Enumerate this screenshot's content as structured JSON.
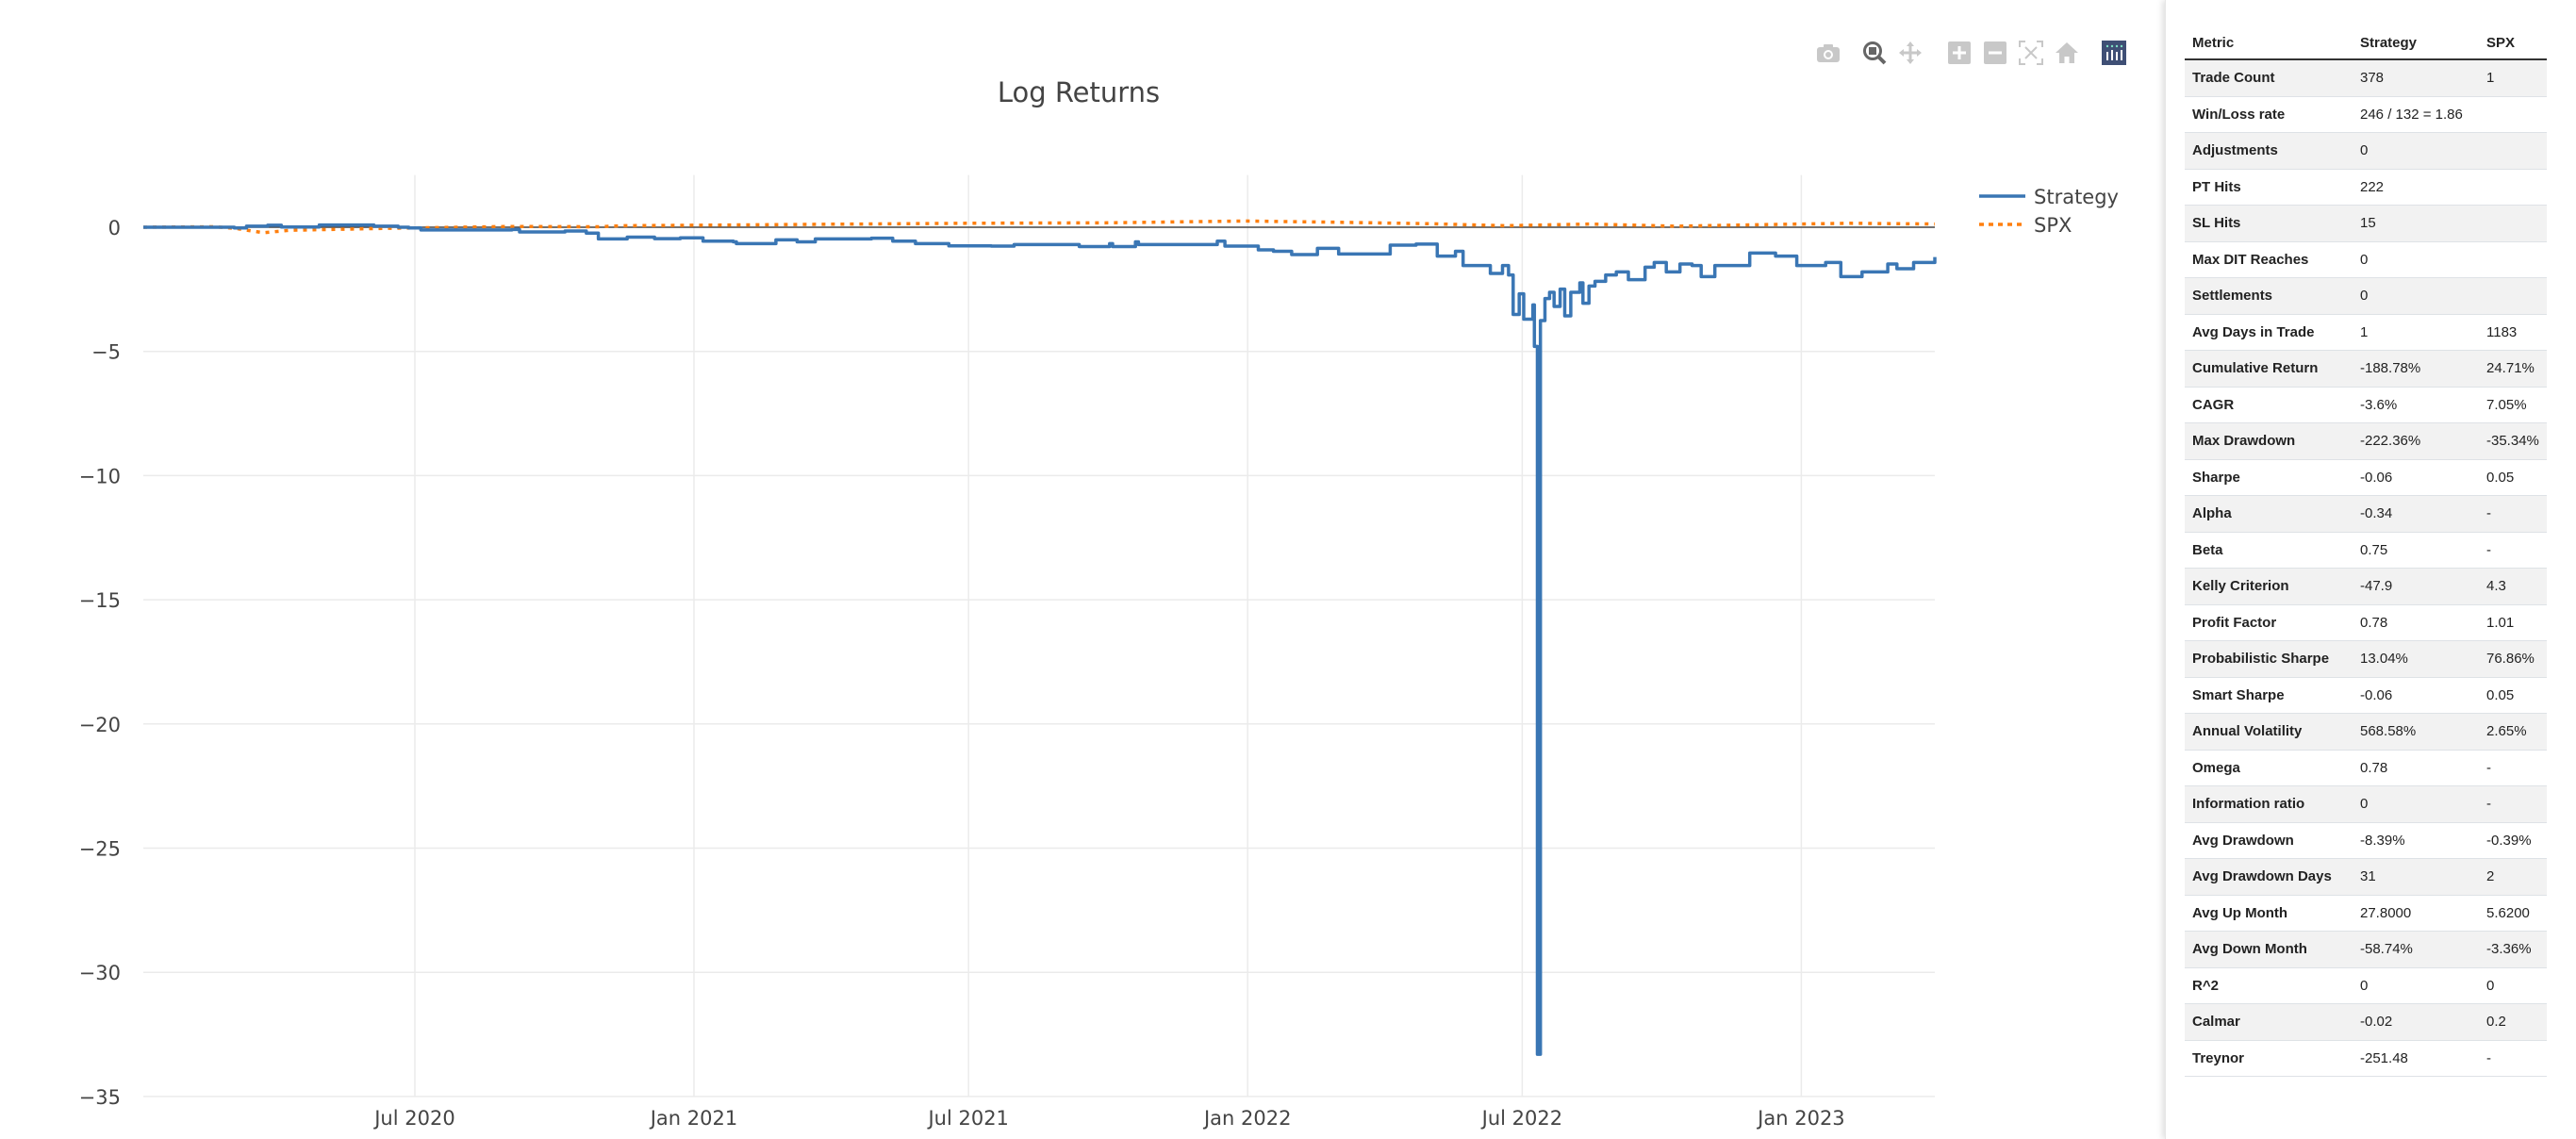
{
  "chart_data": {
    "type": "line",
    "title": "Log Returns",
    "xlabel": "",
    "ylabel": "",
    "xlim": [
      "2020-01-04",
      "2023-03-30"
    ],
    "ylim": [
      -35,
      2.1
    ],
    "grid": true,
    "legend_position": "top-right",
    "x_ticks": [
      {
        "date": "2020-07-01",
        "label": "Jul 2020"
      },
      {
        "date": "2021-01-01",
        "label": "Jan 2021"
      },
      {
        "date": "2021-07-01",
        "label": "Jul 2021"
      },
      {
        "date": "2022-01-01",
        "label": "Jan 2022"
      },
      {
        "date": "2022-07-01",
        "label": "Jul 2022"
      },
      {
        "date": "2023-01-01",
        "label": "Jan 2023"
      }
    ],
    "y_ticks": [
      {
        "value": 0,
        "label": "0"
      },
      {
        "value": -5,
        "label": "−5"
      },
      {
        "value": -10,
        "label": "−10"
      },
      {
        "value": -15,
        "label": "−15"
      },
      {
        "value": -20,
        "label": "−20"
      },
      {
        "value": -25,
        "label": "−25"
      },
      {
        "value": -30,
        "label": "−30"
      },
      {
        "value": -35,
        "label": "−35"
      }
    ],
    "series": [
      {
        "name": "Strategy",
        "color": "#3a76b4",
        "dash": "solid",
        "points": [
          [
            "2020-01-04",
            0
          ],
          [
            "2020-03-04",
            -0.03
          ],
          [
            "2020-03-12",
            0.04
          ],
          [
            "2020-03-26",
            0.08
          ],
          [
            "2020-04-04",
            0.01
          ],
          [
            "2020-04-29",
            0.09
          ],
          [
            "2020-05-10",
            0.09
          ],
          [
            "2020-06-04",
            0.04
          ],
          [
            "2020-06-20",
            0
          ],
          [
            "2020-06-27",
            -0.03
          ],
          [
            "2020-07-05",
            -0.11
          ],
          [
            "2020-09-03",
            -0.09
          ],
          [
            "2020-09-08",
            -0.19
          ],
          [
            "2020-10-08",
            -0.15
          ],
          [
            "2020-10-22",
            -0.24
          ],
          [
            "2020-10-30",
            -0.47
          ],
          [
            "2020-11-18",
            -0.4
          ],
          [
            "2020-12-06",
            -0.46
          ],
          [
            "2020-12-23",
            -0.43
          ],
          [
            "2021-01-04",
            -0.43
          ],
          [
            "2021-01-07",
            -0.56
          ],
          [
            "2021-01-27",
            -0.59
          ],
          [
            "2021-01-29",
            -0.66
          ],
          [
            "2021-02-24",
            -0.51
          ],
          [
            "2021-03-10",
            -0.59
          ],
          [
            "2021-03-22",
            -0.47
          ],
          [
            "2021-04-28",
            -0.44
          ],
          [
            "2021-05-12",
            -0.56
          ],
          [
            "2021-05-27",
            -0.66
          ],
          [
            "2021-06-15",
            -0.66
          ],
          [
            "2021-06-18",
            -0.75
          ],
          [
            "2021-07-16",
            -0.76
          ],
          [
            "2021-07-31",
            -0.7
          ],
          [
            "2021-09-09",
            -0.7
          ],
          [
            "2021-09-12",
            -0.78
          ],
          [
            "2021-10-02",
            -0.66
          ],
          [
            "2021-10-04",
            -0.78
          ],
          [
            "2021-10-19",
            -0.59
          ],
          [
            "2021-10-21",
            -0.7
          ],
          [
            "2021-11-30",
            -0.7
          ],
          [
            "2021-12-12",
            -0.56
          ],
          [
            "2021-12-17",
            -0.76
          ],
          [
            "2022-01-04",
            -0.76
          ],
          [
            "2022-01-08",
            -0.91
          ],
          [
            "2022-01-18",
            -0.97
          ],
          [
            "2022-01-30",
            -1.1
          ],
          [
            "2022-02-16",
            -0.85
          ],
          [
            "2022-03-02",
            -1.08
          ],
          [
            "2022-04-05",
            -0.72
          ],
          [
            "2022-04-22",
            -0.68
          ],
          [
            "2022-05-06",
            -1.16
          ],
          [
            "2022-05-18",
            -0.97
          ],
          [
            "2022-05-23",
            -1.54
          ],
          [
            "2022-06-10",
            -1.86
          ],
          [
            "2022-06-18",
            -1.54
          ],
          [
            "2022-06-22",
            -1.92
          ],
          [
            "2022-06-25",
            -3.51
          ],
          [
            "2022-06-29",
            -2.68
          ],
          [
            "2022-07-02",
            -3.7
          ],
          [
            "2022-07-08",
            -3.13
          ],
          [
            "2022-07-09",
            -4.8
          ],
          [
            "2022-07-11",
            -33.3
          ],
          [
            "2022-07-13",
            -3.76
          ],
          [
            "2022-07-16",
            -2.87
          ],
          [
            "2022-07-19",
            -2.62
          ],
          [
            "2022-07-22",
            -3.19
          ],
          [
            "2022-07-26",
            -2.49
          ],
          [
            "2022-07-29",
            -3.57
          ],
          [
            "2022-08-02",
            -2.62
          ],
          [
            "2022-08-08",
            -2.24
          ],
          [
            "2022-08-10",
            -3.06
          ],
          [
            "2022-08-14",
            -2.37
          ],
          [
            "2022-08-18",
            -2.18
          ],
          [
            "2022-08-25",
            -1.92
          ],
          [
            "2022-09-01",
            -1.8
          ],
          [
            "2022-09-09",
            -2.11
          ],
          [
            "2022-09-20",
            -1.61
          ],
          [
            "2022-09-26",
            -1.42
          ],
          [
            "2022-10-04",
            -1.8
          ],
          [
            "2022-10-13",
            -1.48
          ],
          [
            "2022-10-21",
            -1.54
          ],
          [
            "2022-10-27",
            -1.99
          ],
          [
            "2022-11-05",
            -1.54
          ],
          [
            "2022-11-28",
            -1.04
          ],
          [
            "2022-12-15",
            -1.16
          ],
          [
            "2022-12-29",
            -1.54
          ],
          [
            "2023-01-17",
            -1.42
          ],
          [
            "2023-01-27",
            -1.99
          ],
          [
            "2023-02-10",
            -1.8
          ],
          [
            "2023-02-27",
            -1.48
          ],
          [
            "2023-03-05",
            -1.67
          ],
          [
            "2023-03-16",
            -1.42
          ],
          [
            "2023-03-30",
            -1.2
          ]
        ]
      },
      {
        "name": "SPX",
        "color": "#ff7f0e",
        "dash": "dot",
        "points": [
          [
            "2020-01-04",
            0
          ],
          [
            "2020-02-20",
            0.02
          ],
          [
            "2020-03-05",
            -0.05
          ],
          [
            "2020-03-23",
            -0.22
          ],
          [
            "2020-04-10",
            -0.12
          ],
          [
            "2020-05-15",
            -0.08
          ],
          [
            "2020-06-15",
            -0.04
          ],
          [
            "2020-07-10",
            -0.02
          ],
          [
            "2020-09-01",
            0.03
          ],
          [
            "2020-10-30",
            0.02
          ],
          [
            "2020-11-15",
            0.06
          ],
          [
            "2021-01-01",
            0.08
          ],
          [
            "2021-04-01",
            0.12
          ],
          [
            "2021-07-01",
            0.16
          ],
          [
            "2021-10-01",
            0.18
          ],
          [
            "2021-12-30",
            0.25
          ],
          [
            "2022-03-01",
            0.2
          ],
          [
            "2022-05-01",
            0.14
          ],
          [
            "2022-06-20",
            0.06
          ],
          [
            "2022-08-15",
            0.13
          ],
          [
            "2022-10-10",
            0.04
          ],
          [
            "2022-12-01",
            0.1
          ],
          [
            "2023-02-01",
            0.16
          ],
          [
            "2023-03-30",
            0.13
          ]
        ]
      }
    ]
  },
  "modebar": {
    "buttons": [
      {
        "icon": "camera-icon",
        "label": "Download plot as png"
      },
      {
        "icon": "zoom-icon",
        "label": "Zoom"
      },
      {
        "icon": "pan-icon",
        "label": "Pan"
      },
      {
        "icon": "zoom-in-icon",
        "label": "Zoom in"
      },
      {
        "icon": "zoom-out-icon",
        "label": "Zoom out"
      },
      {
        "icon": "autoscale-icon",
        "label": "Autoscale"
      },
      {
        "icon": "home-icon",
        "label": "Reset axes"
      },
      {
        "icon": "plotly-logo-icon",
        "label": "Produced with Plotly"
      }
    ],
    "logo_color": "#3f4f75"
  },
  "metrics_table": {
    "headers": [
      "Metric",
      "Strategy",
      "SPX"
    ],
    "rows": [
      [
        "Trade Count",
        "378",
        "1"
      ],
      [
        "Win/Loss rate",
        "246 / 132 = 1.86",
        ""
      ],
      [
        "Adjustments",
        "0",
        ""
      ],
      [
        "PT Hits",
        "222",
        ""
      ],
      [
        "SL Hits",
        "15",
        ""
      ],
      [
        "Max DIT Reaches",
        "0",
        ""
      ],
      [
        "Settlements",
        "0",
        ""
      ],
      [
        "Avg Days in Trade",
        "1",
        "1183"
      ],
      [
        "Cumulative Return",
        "-188.78%",
        "24.71%"
      ],
      [
        "CAGR",
        "-3.6%",
        "7.05%"
      ],
      [
        "Max Drawdown",
        "-222.36%",
        "-35.34%"
      ],
      [
        "Sharpe",
        "-0.06",
        "0.05"
      ],
      [
        "Alpha",
        "-0.34",
        "-"
      ],
      [
        "Beta",
        "0.75",
        "-"
      ],
      [
        "Kelly Criterion",
        "-47.9",
        "4.3"
      ],
      [
        "Profit Factor",
        "0.78",
        "1.01"
      ],
      [
        "Probabilistic Sharpe",
        "13.04%",
        "76.86%"
      ],
      [
        "Smart Sharpe",
        "-0.06",
        "0.05"
      ],
      [
        "Annual Volatility",
        "568.58%",
        "2.65%"
      ],
      [
        "Omega",
        "0.78",
        "-"
      ],
      [
        "Information ratio",
        "0",
        "-"
      ],
      [
        "Avg Drawdown",
        "-8.39%",
        "-0.39%"
      ],
      [
        "Avg Drawdown Days",
        "31",
        "2"
      ],
      [
        "Avg Up Month",
        "27.8000",
        "5.6200"
      ],
      [
        "Avg Down Month",
        "-58.74%",
        "-3.36%"
      ],
      [
        "R^2",
        "0",
        "0"
      ],
      [
        "Calmar",
        "-0.02",
        "0.2"
      ],
      [
        "Treynor",
        "-251.48",
        "-"
      ]
    ]
  }
}
